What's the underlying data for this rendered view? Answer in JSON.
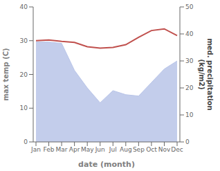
{
  "chart_data": {
    "type": "line",
    "categories": [
      "Jan",
      "Feb",
      "Mar",
      "Apr",
      "May",
      "Jun",
      "Jul",
      "Aug",
      "Sep",
      "Oct",
      "Nov",
      "Dec"
    ],
    "xlabel": "date (month)",
    "ylabel": "max temp (C)",
    "y2label": "med. precipitation\n(kg/m2)",
    "ylim": [
      0,
      40
    ],
    "yticks": [
      0,
      10,
      20,
      30,
      40
    ],
    "y2lim": [
      0,
      50
    ],
    "y2ticks": [
      0,
      10,
      20,
      30,
      40,
      50
    ],
    "grid": false,
    "series": [
      {
        "type": "area",
        "axis": "y2",
        "color": "#b8c4e8",
        "values": [
          37.0,
          37.0,
          36.5,
          26.5,
          20.0,
          14.5,
          19.0,
          17.5,
          17.0,
          22.0,
          27.0,
          30.0
        ]
      },
      {
        "type": "line",
        "color": "#c0504d",
        "values": [
          30.0,
          30.2,
          29.8,
          29.5,
          28.2,
          27.8,
          28.0,
          28.8,
          31.0,
          33.0,
          33.5,
          31.5
        ]
      }
    ]
  }
}
